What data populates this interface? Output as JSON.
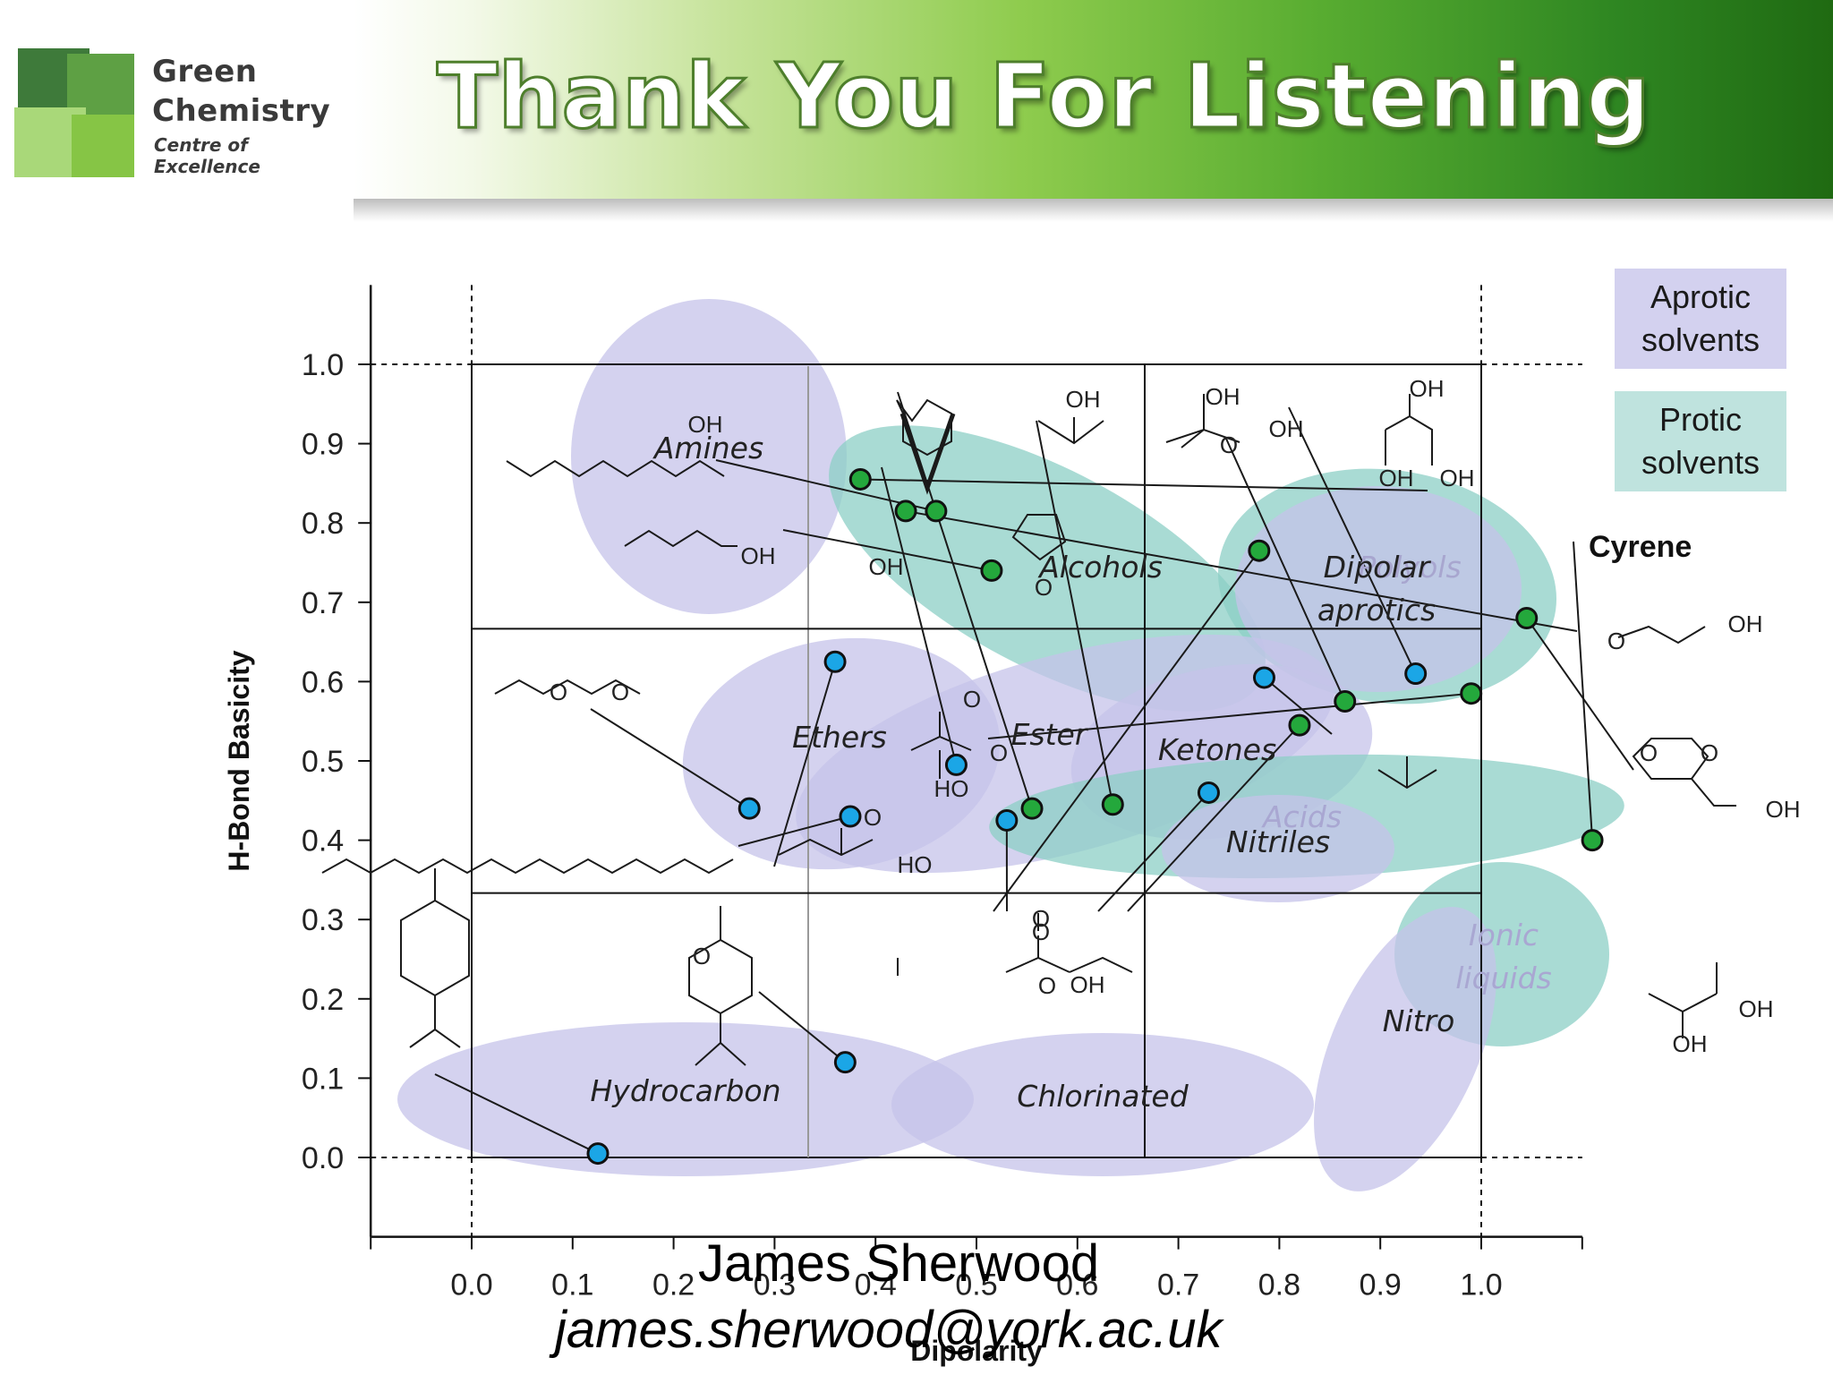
{
  "slide": {
    "title": "Thank You For Listening",
    "author": "James Sherwood",
    "email": "james.sherwood@york.ac.uk",
    "logo": {
      "line1": "Green",
      "line2": "Chemistry",
      "line3": "Centre of Excellence"
    },
    "colors": {
      "aprotic": "#c5c3ea",
      "protic": "#8ccfc6",
      "point_blue": "#1ba6e6",
      "point_green": "#24a83c",
      "banner_dark": "#1f6a12"
    }
  },
  "legend": {
    "aprotic": "Aprotic solvents",
    "protic": "Protic solvents"
  },
  "callout": "Cyrene",
  "chart_data": {
    "type": "scatter",
    "xlabel": "Dipolarity",
    "ylabel": "H-Bond Basicity",
    "xlim": [
      -0.1,
      1.1
    ],
    "ylim": [
      -0.1,
      1.1
    ],
    "x_ticks": [
      "0.0",
      "0.1",
      "0.2",
      "0.3",
      "0.4",
      "0.5",
      "0.6",
      "0.7",
      "0.8",
      "0.9",
      "1.0"
    ],
    "y_ticks": [
      "0.0",
      "0.1",
      "0.2",
      "0.3",
      "0.4",
      "0.5",
      "0.6",
      "0.7",
      "0.8",
      "0.9",
      "1.0"
    ],
    "grid": "3x3 boxes within 0-1 range",
    "region_labels": [
      {
        "label": "Amines",
        "type": "aprotic"
      },
      {
        "label": "Alcohols",
        "type": "protic"
      },
      {
        "label": "Polyols",
        "type": "protic"
      },
      {
        "label": "Dipolar aprotics",
        "type": "aprotic"
      },
      {
        "label": "Ethers",
        "type": "aprotic"
      },
      {
        "label": "Ester",
        "type": "aprotic"
      },
      {
        "label": "Ketones",
        "type": "aprotic"
      },
      {
        "label": "Acids",
        "type": "protic"
      },
      {
        "label": "Nitriles",
        "type": "aprotic"
      },
      {
        "label": "Ionic liquids",
        "type": "protic"
      },
      {
        "label": "Nitro",
        "type": "aprotic"
      },
      {
        "label": "Hydrocarbon",
        "type": "aprotic"
      },
      {
        "label": "Chlorinated",
        "type": "aprotic"
      }
    ],
    "series": [
      {
        "type": "aprotic",
        "points": [
          [
            0.125,
            0.005
          ],
          [
            0.37,
            0.12
          ],
          [
            0.275,
            0.44
          ],
          [
            0.375,
            0.43
          ],
          [
            0.36,
            0.625
          ],
          [
            0.48,
            0.495
          ],
          [
            0.53,
            0.425
          ],
          [
            0.73,
            0.46
          ],
          [
            0.785,
            0.605
          ],
          [
            0.935,
            0.61
          ]
        ]
      },
      {
        "type": "protic",
        "points": [
          [
            0.385,
            0.855
          ],
          [
            0.43,
            0.815
          ],
          [
            0.46,
            0.815
          ],
          [
            0.515,
            0.74
          ],
          [
            0.555,
            0.44
          ],
          [
            0.635,
            0.445
          ],
          [
            0.78,
            0.765
          ],
          [
            0.82,
            0.545
          ],
          [
            0.865,
            0.575
          ],
          [
            0.99,
            0.585
          ],
          [
            1.045,
            0.68
          ],
          [
            1.11,
            0.4
          ]
        ]
      }
    ],
    "structure_labels": [
      "OH",
      "OH",
      "OH",
      "OH",
      "OH",
      "OH",
      "OH",
      "OH",
      "OH",
      "OH",
      "OH",
      "OH",
      "OH",
      "OH",
      "HO",
      "HO",
      "O",
      "O",
      "O",
      "O",
      "O",
      "O",
      "O",
      "O",
      "O",
      "O",
      "O",
      "O",
      "O",
      "O"
    ]
  }
}
